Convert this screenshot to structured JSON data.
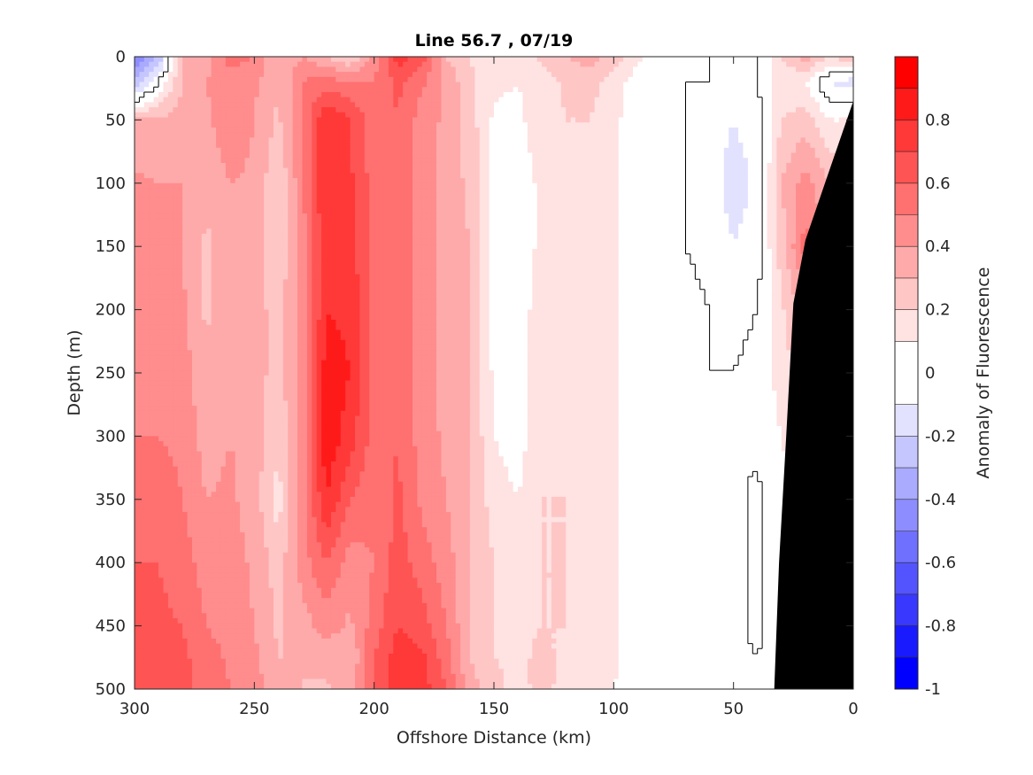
{
  "chart_data": {
    "type": "heatmap",
    "subtype": "filled-contour-section",
    "title": "Line 56.7 , 07/19",
    "xlabel": "Offshore Distance (km)",
    "ylabel": "Depth (m)",
    "xlim": [
      300,
      0
    ],
    "ylim": [
      0,
      500
    ],
    "x_reversed": true,
    "y_reversed": true,
    "xticks": [
      300,
      250,
      200,
      150,
      100,
      50,
      0
    ],
    "yticks": [
      0,
      50,
      100,
      150,
      200,
      250,
      300,
      350,
      400,
      450,
      500
    ],
    "colorbar": {
      "label": "Anomaly of Fluorescence",
      "range": [
        -1,
        1
      ],
      "ticks": [
        0.8,
        0.6,
        0.4,
        0.2,
        0,
        -0.2,
        -0.4,
        -0.6,
        -0.8,
        -1
      ],
      "tick_labels": [
        "0.8",
        "0.6",
        "0.4",
        "0.2",
        "0",
        "-0.2",
        "-0.4",
        "-0.6",
        "-0.8",
        "-1"
      ],
      "levels": [
        -1,
        -0.9,
        -0.8,
        -0.7,
        -0.6,
        -0.5,
        -0.4,
        -0.3,
        -0.2,
        -0.1,
        0.1,
        0.2,
        0.3,
        0.4,
        0.5,
        0.6,
        0.7,
        0.8,
        0.9,
        1
      ],
      "colors": [
        "#0000ff",
        "#1a1aff",
        "#3838ff",
        "#5454ff",
        "#7070ff",
        "#8d8dff",
        "#aaaaff",
        "#c6c6ff",
        "#e2e2ff",
        "#ffffff",
        "#ffe2e2",
        "#ffc6c6",
        "#ffaaaa",
        "#ff8d8d",
        "#ff7070",
        "#ff5454",
        "#ff3838",
        "#ff1a1a",
        "#ff0000"
      ]
    },
    "grid": false,
    "bathymetry_color": "#000000",
    "columns": [
      {
        "x": 300,
        "values": [
          -0.55,
          -0.3,
          0.3,
          0.42,
          0.45,
          0.45,
          0.5,
          0.5,
          0.55,
          0.6,
          0.62,
          0.66,
          0.7
        ]
      },
      {
        "x": 290,
        "values": [
          -0.3,
          0.0,
          0.32,
          0.4,
          0.42,
          0.45,
          0.48,
          0.5,
          0.55,
          0.6,
          0.62,
          0.65,
          0.68
        ]
      },
      {
        "x": 280,
        "values": [
          0.3,
          0.3,
          0.35,
          0.4,
          0.4,
          0.42,
          0.45,
          0.48,
          0.5,
          0.55,
          0.6,
          0.62,
          0.62
        ]
      },
      {
        "x": 270,
        "values": [
          0.35,
          0.4,
          0.38,
          0.32,
          0.28,
          0.28,
          0.32,
          0.35,
          0.4,
          0.45,
          0.5,
          0.55,
          0.58
        ]
      },
      {
        "x": 260,
        "values": [
          0.55,
          0.45,
          0.48,
          0.4,
          0.35,
          0.38,
          0.4,
          0.4,
          0.42,
          0.45,
          0.45,
          0.48,
          0.5
        ]
      },
      {
        "x": 250,
        "values": [
          0.5,
          0.42,
          0.4,
          0.38,
          0.35,
          0.35,
          0.35,
          0.35,
          0.35,
          0.38,
          0.4,
          0.42,
          0.45
        ]
      },
      {
        "x": 240,
        "values": [
          0.3,
          0.3,
          0.28,
          0.2,
          0.22,
          0.25,
          0.25,
          0.22,
          0.15,
          0.25,
          0.28,
          0.3,
          0.35
        ]
      },
      {
        "x": 230,
        "values": [
          0.4,
          0.5,
          0.5,
          0.48,
          0.45,
          0.45,
          0.45,
          0.45,
          0.45,
          0.45,
          0.35,
          0.3,
          0.3
        ]
      },
      {
        "x": 220,
        "values": [
          0.3,
          0.55,
          0.8,
          0.8,
          0.8,
          0.8,
          0.85,
          0.88,
          0.8,
          0.6,
          0.45,
          0.35,
          0.28
        ]
      },
      {
        "x": 210,
        "values": [
          0.2,
          0.5,
          0.7,
          0.72,
          0.75,
          0.78,
          0.8,
          0.75,
          0.6,
          0.45,
          0.38,
          0.3,
          0.35
        ]
      },
      {
        "x": 200,
        "values": [
          0.45,
          0.5,
          0.55,
          0.55,
          0.55,
          0.55,
          0.55,
          0.55,
          0.52,
          0.5,
          0.55,
          0.6,
          0.62
        ]
      },
      {
        "x": 190,
        "values": [
          0.75,
          0.62,
          0.6,
          0.55,
          0.55,
          0.55,
          0.58,
          0.6,
          0.62,
          0.65,
          0.7,
          0.75,
          0.78
        ]
      },
      {
        "x": 180,
        "values": [
          0.65,
          0.52,
          0.45,
          0.45,
          0.45,
          0.45,
          0.45,
          0.45,
          0.48,
          0.55,
          0.65,
          0.72,
          0.75
        ]
      },
      {
        "x": 170,
        "values": [
          0.3,
          0.38,
          0.38,
          0.35,
          0.35,
          0.35,
          0.35,
          0.38,
          0.4,
          0.45,
          0.5,
          0.55,
          0.6
        ]
      },
      {
        "x": 160,
        "values": [
          0.2,
          0.22,
          0.25,
          0.28,
          0.3,
          0.3,
          0.3,
          0.3,
          0.3,
          0.3,
          0.3,
          0.3,
          0.35
        ]
      },
      {
        "x": 150,
        "values": [
          0.15,
          0.12,
          0.08,
          0.05,
          0.05,
          0.05,
          0.08,
          0.1,
          0.15,
          0.2,
          0.2,
          0.2,
          0.22
        ]
      },
      {
        "x": 140,
        "values": [
          0.12,
          0.1,
          0.08,
          0.05,
          0.05,
          0.05,
          0.05,
          0.05,
          0.1,
          0.15,
          0.18,
          0.18,
          0.18
        ]
      },
      {
        "x": 130,
        "values": [
          0.22,
          0.15,
          0.15,
          0.12,
          0.12,
          0.15,
          0.15,
          0.18,
          0.2,
          0.2,
          0.2,
          0.22,
          0.22
        ]
      },
      {
        "x": 120,
        "values": [
          0.3,
          0.22,
          0.2,
          0.18,
          0.15,
          0.15,
          0.18,
          0.2,
          0.2,
          0.2,
          0.2,
          0.18,
          0.18
        ]
      },
      {
        "x": 110,
        "values": [
          0.35,
          0.25,
          0.2,
          0.18,
          0.15,
          0.15,
          0.15,
          0.15,
          0.15,
          0.15,
          0.15,
          0.15,
          0.12
        ]
      },
      {
        "x": 100,
        "values": [
          0.25,
          0.15,
          0.12,
          0.12,
          0.12,
          0.12,
          0.12,
          0.12,
          0.12,
          0.12,
          0.12,
          0.12,
          0.1
        ]
      },
      {
        "x": 90,
        "values": [
          0.12,
          0.05,
          0.05,
          0.05,
          0.05,
          0.05,
          0.05,
          0.05,
          0.05,
          0.05,
          0.05,
          0.05,
          0.05
        ]
      },
      {
        "x": 80,
        "values": [
          0.05,
          0.02,
          0.0,
          0.0,
          0.02,
          0.02,
          0.02,
          0.02,
          0.02,
          0.02,
          0.02,
          0.02,
          0.02
        ]
      },
      {
        "x": 70,
        "values": [
          0.0,
          0.0,
          0.0,
          0.0,
          0.0,
          0.02,
          0.02,
          0.02,
          0.02,
          0.02,
          0.02,
          0.02,
          0.02
        ]
      },
      {
        "x": 60,
        "values": [
          0.0,
          0.0,
          -0.05,
          -0.05,
          -0.02,
          0.0,
          0.0,
          0.02,
          0.02,
          0.02,
          0.02,
          0.02,
          0.02
        ]
      },
      {
        "x": 50,
        "values": [
          0.0,
          -0.02,
          -0.1,
          -0.15,
          -0.1,
          -0.02,
          0.0,
          0.0,
          0.02,
          0.02,
          0.02,
          0.02,
          0.02
        ]
      },
      {
        "x": 40,
        "values": [
          0.0,
          0.0,
          -0.05,
          -0.08,
          -0.05,
          0.0,
          0.02,
          0.02,
          -0.02,
          -0.02,
          -0.02,
          0.0,
          0.02
        ]
      },
      {
        "x": 30,
        "values": [
          0.2,
          0.15,
          0.2,
          0.3,
          0.25,
          0.18,
          0.15,
          0.1,
          0.05,
          0.05,
          0.05,
          0.05,
          0.05
        ]
      },
      {
        "x": 20,
        "values": [
          0.35,
          0.1,
          0.25,
          0.45,
          0.55,
          0.35,
          0.25,
          0.2,
          0.2,
          0.2,
          0.2,
          0.2,
          0.2
        ]
      },
      {
        "x": 10,
        "values": [
          0.2,
          -0.1,
          0.1,
          0.3,
          0.35,
          0.35,
          0.3,
          0.3,
          0.3,
          0.3,
          0.3,
          0.3,
          0.3
        ]
      },
      {
        "x": 0,
        "values": [
          0.3,
          -0.15,
          0.1,
          0.25,
          0.3,
          0.3,
          0.3,
          0.3,
          0.3,
          0.3,
          0.3,
          0.3,
          0.3
        ]
      }
    ],
    "depths": [
      0,
      20,
      50,
      100,
      150,
      200,
      250,
      300,
      350,
      400,
      450,
      475,
      500
    ],
    "bottom_profile": [
      {
        "x": 0,
        "depth": 35
      },
      {
        "x": 10,
        "depth": 90
      },
      {
        "x": 20,
        "depth": 145
      },
      {
        "x": 25,
        "depth": 195
      },
      {
        "x": 28,
        "depth": 300
      },
      {
        "x": 31,
        "depth": 400
      },
      {
        "x": 33,
        "depth": 500
      }
    ]
  }
}
